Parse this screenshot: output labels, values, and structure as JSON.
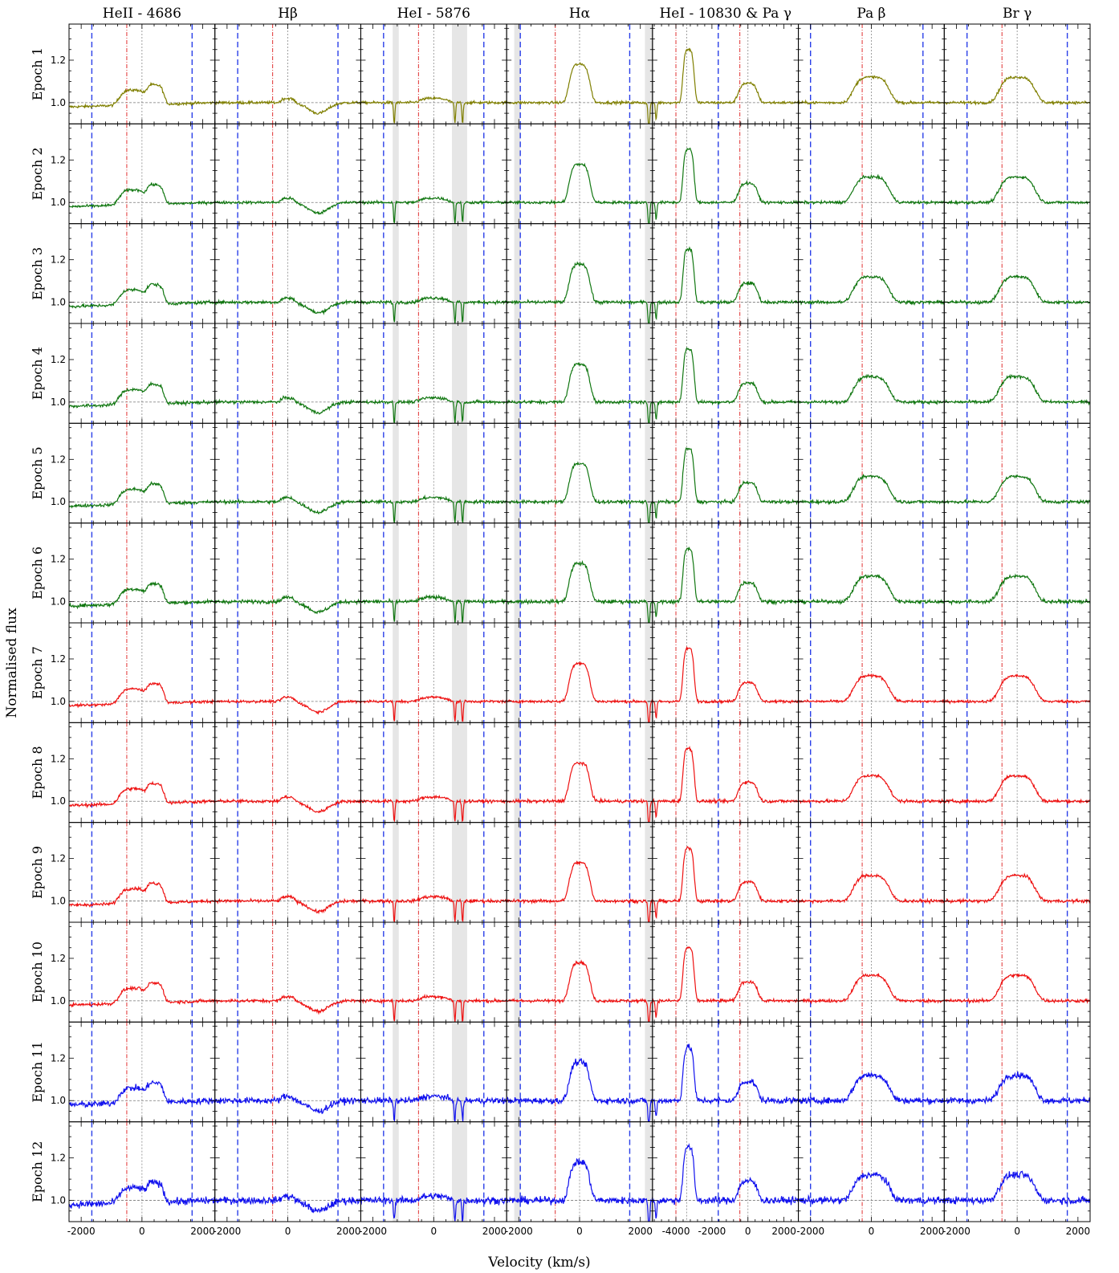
{
  "figure": {
    "xlabel": "Velocity (km/s)",
    "ylabel": "Normalised flux"
  },
  "chart_data": {
    "type": "line",
    "title": "",
    "xlabel": "Velocity (km/s)",
    "ylabel": "Normalised flux",
    "grid": false,
    "ylim": [
      0.9,
      1.37
    ],
    "y_ticks": [
      "1.0",
      "1.2"
    ],
    "rows": [
      "Epoch 1",
      "Epoch 2",
      "Epoch 3",
      "Epoch 4",
      "Epoch 5",
      "Epoch 6",
      "Epoch 7",
      "Epoch 8",
      "Epoch 9",
      "Epoch 10",
      "Epoch 11",
      "Epoch 12"
    ],
    "row_colors": [
      "#7f7f00",
      "#117711",
      "#117711",
      "#117711",
      "#117711",
      "#117711",
      "#ee1111",
      "#ee1111",
      "#ee1111",
      "#ee1111",
      "#1111ee",
      "#1111ee"
    ],
    "noise": [
      0.006,
      0.006,
      0.007,
      0.007,
      0.007,
      0.008,
      0.006,
      0.007,
      0.007,
      0.007,
      0.014,
      0.016
    ],
    "columns": [
      {
        "title": "HeII - 4686",
        "xlim": [
          -2400,
          2400
        ],
        "x_ticks": [
          -2000,
          0,
          2000
        ],
        "x_tick_labels": [
          "-2000",
          "0",
          "2000"
        ],
        "red_lines": [
          -500
        ],
        "blue_lines": [
          -1650,
          1650
        ],
        "gray_lines": [
          0
        ],
        "shaded": [],
        "peak": [
          [
            -300,
            0.07,
            500
          ],
          [
            450,
            0.09,
            300
          ]
        ],
        "slope": [
          -0.02,
          0.04
        ],
        "abs": []
      },
      {
        "title": "Hβ",
        "xlim": [
          -2400,
          2400
        ],
        "x_ticks": [
          -2000,
          0,
          2000
        ],
        "x_tick_labels": [
          "-2000",
          "0",
          "2000"
        ],
        "red_lines": [
          -500
        ],
        "blue_lines": [
          -1650,
          1650
        ],
        "gray_lines": [
          0
        ],
        "shaded": [],
        "peak": [
          [
            0,
            0.02,
            250
          ]
        ],
        "slope": [
          0,
          0
        ],
        "abs": [
          [
            1000,
            0.05,
            450
          ]
        ]
      },
      {
        "title": "HeI - 5876",
        "xlim": [
          -2400,
          2400
        ],
        "x_ticks": [
          -2000,
          0,
          2000
        ],
        "x_tick_labels": [
          "-2000",
          "0",
          "2000"
        ],
        "red_lines": [
          -500
        ],
        "blue_lines": [
          -1650,
          1650
        ],
        "gray_lines": [
          0
        ],
        "shaded": [
          [
            -1350,
            -1150
          ],
          [
            600,
            1100
          ]
        ],
        "peak": [
          [
            0,
            0.02,
            500
          ]
        ],
        "slope": [
          0,
          0
        ],
        "abs": [
          [
            -1300,
            0.1,
            30
          ],
          [
            700,
            0.1,
            30
          ],
          [
            950,
            0.1,
            30
          ]
        ]
      },
      {
        "title": "Hα",
        "xlim": [
          -2400,
          2400
        ],
        "x_ticks": [
          -2000,
          0,
          2000
        ],
        "x_tick_labels": [
          "-2000",
          "0",
          "2000"
        ],
        "red_lines": [
          -800
        ],
        "blue_lines": [
          -1950,
          1650
        ],
        "gray_lines": [
          0
        ],
        "shaded": [
          [
            -2150,
            -1950
          ],
          [
            2150,
            2400
          ]
        ],
        "peak": [
          [
            0,
            0.18,
            380
          ]
        ],
        "slope": [
          0,
          0
        ],
        "abs": [
          [
            2280,
            0.12,
            40
          ]
        ]
      },
      {
        "title": "HeI - 10830 & Pa γ",
        "xlim": [
          -5300,
          2800
        ],
        "x_ticks": [
          -4000,
          -2000,
          0,
          2000
        ],
        "x_tick_labels": [
          "-4000",
          "-2000",
          "0",
          "2000"
        ],
        "red_lines": [
          -4000,
          -450
        ],
        "blue_lines": [
          -1650
        ],
        "gray_lines": [
          -3400,
          0
        ],
        "shaded": [],
        "peak": [
          [
            -3300,
            0.25,
            350
          ],
          [
            0,
            0.09,
            600
          ]
        ],
        "slope": [
          0,
          0
        ],
        "abs": [
          [
            -5100,
            0.08,
            60
          ]
        ]
      },
      {
        "title": "Pa β",
        "xlim": [
          -2400,
          2400
        ],
        "x_ticks": [
          -2000,
          0,
          2000
        ],
        "x_tick_labels": [
          "-2000",
          "0",
          "2000"
        ],
        "red_lines": [
          -300
        ],
        "blue_lines": [
          -2000,
          1700
        ],
        "gray_lines": [
          0
        ],
        "shaded": [],
        "peak": [
          [
            0,
            0.12,
            650
          ]
        ],
        "slope": [
          0,
          0
        ],
        "abs": []
      },
      {
        "title": "Br γ",
        "xlim": [
          -2400,
          2400
        ],
        "x_ticks": [
          -2000,
          0,
          2000
        ],
        "x_tick_labels": [
          "-2000",
          "0",
          "2000"
        ],
        "red_lines": [
          -500
        ],
        "blue_lines": [
          -1650,
          1650
        ],
        "gray_lines": [
          0
        ],
        "shaded": [],
        "peak": [
          [
            0,
            0.12,
            650
          ]
        ],
        "slope": [
          0,
          0
        ],
        "abs": []
      }
    ]
  }
}
